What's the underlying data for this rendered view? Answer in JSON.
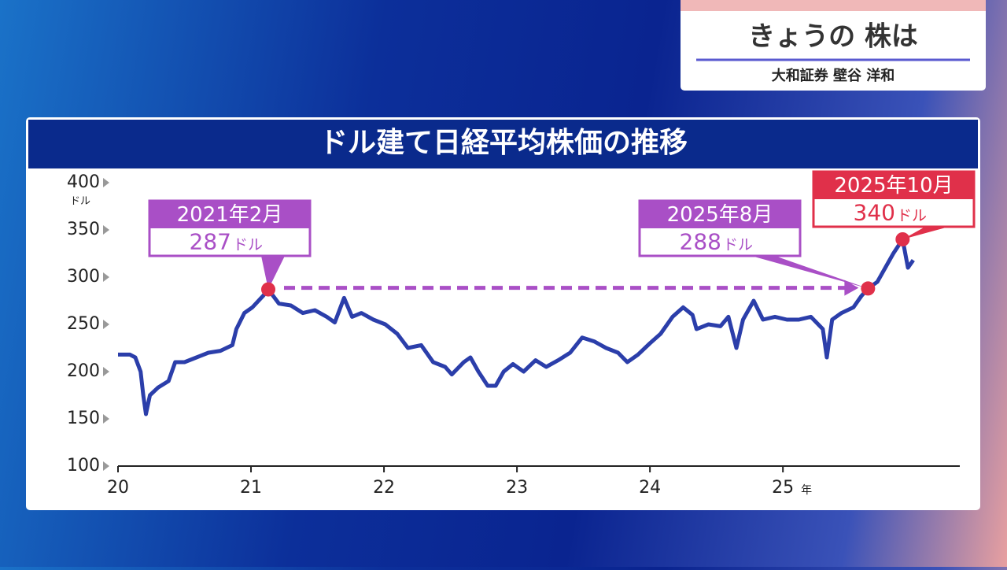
{
  "header": {
    "title": "きょうの 株は",
    "subtitle": "大和証券 壁谷 洋和"
  },
  "chart_data": {
    "type": "line",
    "title": "ドル建て日経平均株価の推移",
    "y_unit": "ドル",
    "x_unit": "年",
    "xlim": [
      20,
      26.33
    ],
    "xticks": [
      20,
      21,
      22,
      23,
      24,
      25
    ],
    "ylim": [
      100,
      400
    ],
    "yticks": [
      100,
      150,
      200,
      250,
      300,
      350,
      400
    ],
    "series": [
      {
        "color": "#2b3eaa",
        "x": [
          20.0,
          20.09,
          20.13,
          20.17,
          20.19,
          20.21,
          20.24,
          20.3,
          20.38,
          20.43,
          20.5,
          20.59,
          20.68,
          20.77,
          20.86,
          20.89,
          20.95,
          21.01,
          21.09,
          21.13,
          21.21,
          21.3,
          21.39,
          21.48,
          21.57,
          21.63,
          21.7,
          21.76,
          21.83,
          21.92,
          22.01,
          22.1,
          22.18,
          22.28,
          22.37,
          22.46,
          22.51,
          22.6,
          22.65,
          22.71,
          22.78,
          22.84,
          22.9,
          22.97,
          23.05,
          23.14,
          23.22,
          23.31,
          23.4,
          23.49,
          23.58,
          23.67,
          23.76,
          23.83,
          23.91,
          24.0,
          24.08,
          24.17,
          24.25,
          24.32,
          24.35,
          24.44,
          24.53,
          24.59,
          24.65,
          24.7,
          24.78,
          24.85,
          24.94,
          25.03,
          25.12,
          25.21,
          25.3,
          25.33,
          25.37,
          25.44,
          25.53,
          25.59,
          25.64,
          25.71,
          25.77,
          25.83,
          25.9,
          25.94,
          25.98
        ],
        "values": [
          218,
          218,
          215,
          200,
          175,
          155,
          175,
          183,
          190,
          210,
          210,
          215,
          220,
          222,
          228,
          245,
          262,
          268,
          280,
          287,
          272,
          270,
          262,
          265,
          258,
          252,
          278,
          258,
          262,
          255,
          250,
          240,
          225,
          228,
          210,
          205,
          197,
          210,
          215,
          200,
          185,
          185,
          200,
          208,
          200,
          212,
          205,
          212,
          220,
          236,
          232,
          225,
          220,
          210,
          218,
          230,
          240,
          258,
          268,
          260,
          245,
          250,
          248,
          258,
          225,
          255,
          275,
          255,
          258,
          255,
          255,
          258,
          245,
          215,
          255,
          262,
          268,
          280,
          288,
          295,
          310,
          325,
          340,
          310,
          318
        ]
      }
    ],
    "annotations": [
      {
        "x": 21.13,
        "value": 287,
        "date": "2021年2月",
        "unit": "ドル",
        "color": "#a94fc6"
      },
      {
        "x": 25.64,
        "value": 288,
        "date": "2025年8月",
        "unit": "ドル",
        "color": "#a94fc6"
      },
      {
        "x": 25.9,
        "value": 340,
        "date": "2025年10月",
        "unit": "ドル",
        "color": "#e0304a"
      }
    ]
  }
}
